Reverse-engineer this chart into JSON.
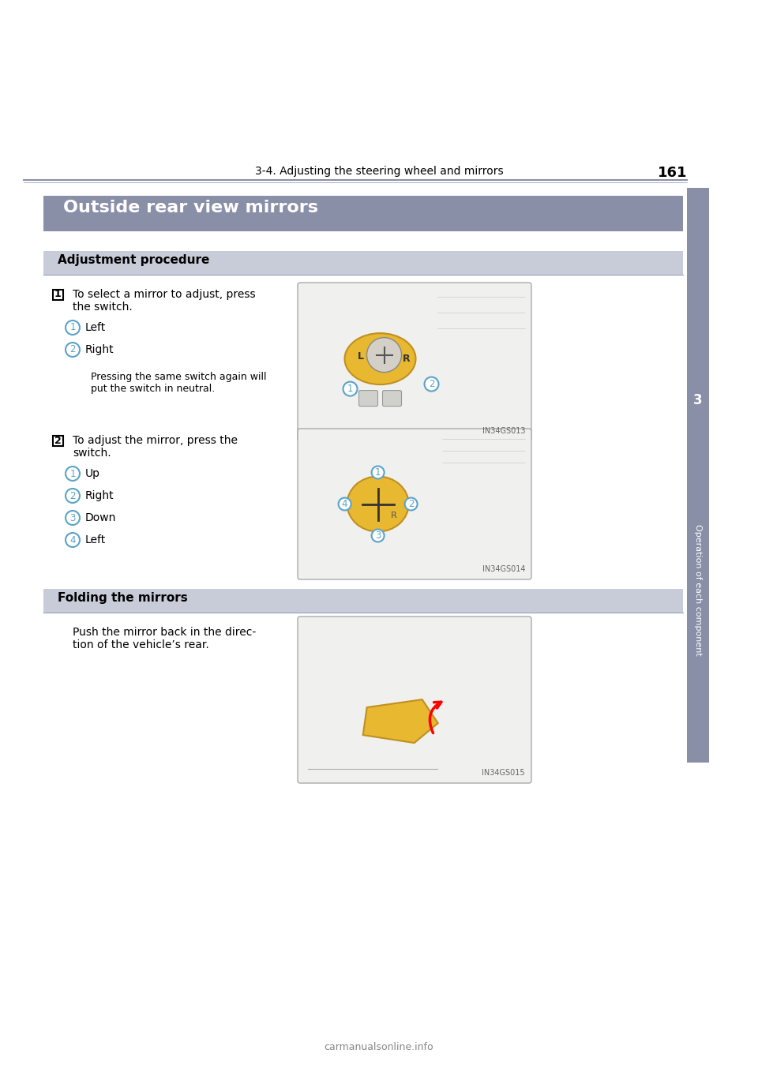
{
  "page_number": "161",
  "header_text": "3-4. Adjusting the steering wheel and mirrors",
  "chapter_number": "3",
  "section_title": "Outside rear view mirrors",
  "subsection1_title": "Adjustment procedure",
  "subsection2_title": "Folding the mirrors",
  "step1_num": "1",
  "step1_text_line1": "To select a mirror to adjust, press",
  "step1_text_line2": "the switch.",
  "step1_item1_num": "1",
  "step1_item1_text": "Left",
  "step1_item2_num": "2",
  "step1_item2_text": "Right",
  "step1_note_line1": "Pressing the same switch again will",
  "step1_note_line2": "put the switch in neutral.",
  "step2_num": "2",
  "step2_text_line1": "To adjust the mirror, press the",
  "step2_text_line2": "switch.",
  "step2_item1_num": "1",
  "step2_item1_text": "Up",
  "step2_item2_num": "2",
  "step2_item2_text": "Right",
  "step2_item3_num": "3",
  "step2_item3_text": "Down",
  "step2_item4_num": "4",
  "step2_item4_text": "Left",
  "fold_text_line1": "Push the mirror back in the direc-",
  "fold_text_line2": "tion of the vehicle’s rear.",
  "img1_label": "IN34GS013",
  "img2_label": "IN34GS014",
  "img3_label": "IN34GS015",
  "sidebar_text": "Operation of each component",
  "bg_color": "#ffffff",
  "header_line_color": "#8a8fa8",
  "section_title_bg": "#8a8fa8",
  "section_title_color": "#ffffff",
  "subsection_bg": "#c8ccd8",
  "subsection_text_color": "#000000",
  "circle_color": "#5ba3c9",
  "text_color": "#000000",
  "sidebar_bg": "#8a8fa8",
  "footer_text": "carmanualsonline.info",
  "footer_color": "#888888"
}
